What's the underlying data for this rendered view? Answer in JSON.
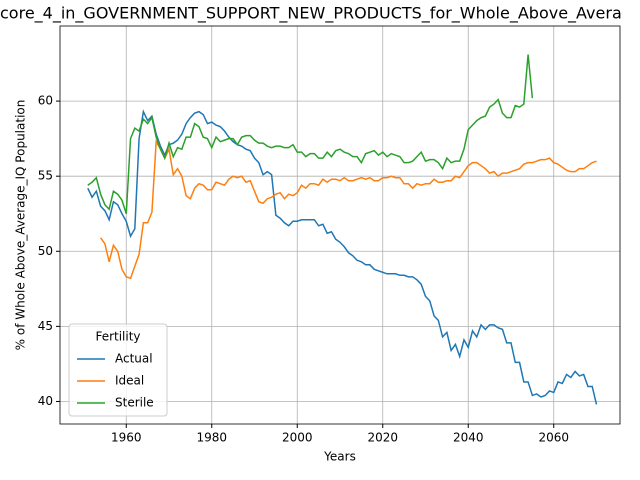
{
  "chart_data": {
    "type": "line",
    "title": "core_4_in_GOVERNMENT_SUPPORT_NEW_PRODUCTS_for_Whole_Above_Avera",
    "xlabel": "Years",
    "ylabel": "% of Whole Above_Average_IQ Population",
    "legend_title": "Fertility",
    "legend": "lower left",
    "grid": true,
    "xlim": [
      1944.5,
      2075.5
    ],
    "ylim": [
      38.5,
      65
    ],
    "xticks": [
      1960,
      1980,
      2000,
      2020,
      2040,
      2060
    ],
    "yticks": [
      40,
      45,
      50,
      55,
      60
    ],
    "x": [
      1951,
      1952,
      1953,
      1954,
      1955,
      1956,
      1957,
      1958,
      1959,
      1960,
      1961,
      1962,
      1963,
      1964,
      1965,
      1966,
      1967,
      1968,
      1969,
      1970,
      1971,
      1972,
      1973,
      1974,
      1975,
      1976,
      1977,
      1978,
      1979,
      1980,
      1981,
      1982,
      1983,
      1984,
      1985,
      1986,
      1987,
      1988,
      1989,
      1990,
      1991,
      1992,
      1993,
      1994,
      1995,
      1996,
      1997,
      1998,
      1999,
      2000,
      2001,
      2002,
      2003,
      2004,
      2005,
      2006,
      2007,
      2008,
      2009,
      2010,
      2011,
      2012,
      2013,
      2014,
      2015,
      2016,
      2017,
      2018,
      2019,
      2020,
      2021,
      2022,
      2023,
      2024,
      2025,
      2026,
      2027,
      2028,
      2029,
      2030,
      2031,
      2032,
      2033,
      2034,
      2035,
      2036,
      2037,
      2038,
      2039,
      2040,
      2041,
      2042,
      2043,
      2044,
      2045,
      2046,
      2047,
      2048,
      2049,
      2050,
      2051,
      2052,
      2053,
      2054,
      2055,
      2056,
      2057,
      2058,
      2059,
      2060,
      2061,
      2062,
      2063,
      2064,
      2065,
      2066,
      2067,
      2068,
      2069,
      2070
    ],
    "series": [
      {
        "name": "Actual",
        "color": "#1f77b4",
        "values": [
          54.2,
          53.6,
          54.0,
          53.0,
          52.7,
          52.1,
          53.3,
          53.1,
          52.5,
          52.0,
          51.0,
          51.5,
          57.5,
          59.3,
          58.7,
          59.0,
          57.8,
          57.0,
          56.4,
          57.1,
          57.2,
          57.4,
          57.8,
          58.5,
          58.9,
          59.2,
          59.3,
          59.1,
          58.5,
          58.6,
          58.4,
          58.3,
          58.0,
          57.6,
          57.3,
          57.1,
          57.0,
          56.8,
          56.7,
          56.2,
          55.9,
          55.1,
          55.3,
          55.1,
          52.4,
          52.2,
          51.9,
          51.7,
          52.0,
          52.0,
          52.1,
          52.1,
          52.1,
          52.1,
          51.7,
          51.8,
          51.2,
          51.3,
          50.8,
          50.6,
          50.3,
          49.9,
          49.7,
          49.4,
          49.3,
          49.1,
          49.1,
          48.8,
          48.7,
          48.6,
          48.5,
          48.5,
          48.5,
          48.4,
          48.4,
          48.3,
          48.3,
          48.1,
          47.8,
          47.0,
          46.7,
          45.7,
          45.4,
          44.3,
          44.6,
          43.4,
          43.8,
          43.0,
          44.1,
          43.6,
          44.7,
          44.3,
          45.1,
          44.8,
          45.1,
          45.1,
          44.9,
          44.8,
          43.9,
          43.9,
          42.6,
          42.6,
          41.3,
          41.3,
          40.4,
          40.5,
          40.3,
          40.4,
          40.7,
          40.6,
          41.3,
          41.2,
          41.8,
          41.6,
          42.0,
          41.7,
          41.8,
          41.0,
          41.0,
          39.8
        ]
      },
      {
        "name": "Ideal",
        "color": "#ff7f0e",
        "values": [
          null,
          null,
          null,
          50.9,
          50.5,
          49.3,
          50.4,
          50.0,
          48.8,
          48.3,
          48.2,
          49.0,
          49.8,
          51.9,
          51.9,
          52.6,
          57.3,
          56.8,
          56.2,
          56.8,
          55.1,
          55.5,
          55.0,
          53.7,
          53.5,
          54.2,
          54.5,
          54.4,
          54.1,
          54.1,
          54.6,
          54.5,
          54.4,
          54.8,
          55.0,
          54.9,
          55.0,
          54.6,
          54.7,
          54.0,
          53.3,
          53.2,
          53.5,
          53.6,
          53.8,
          53.9,
          53.5,
          53.8,
          53.7,
          53.9,
          54.4,
          54.2,
          54.5,
          54.5,
          54.4,
          54.8,
          54.6,
          54.8,
          54.8,
          54.7,
          54.9,
          54.7,
          54.7,
          54.8,
          54.9,
          54.8,
          54.9,
          54.7,
          54.7,
          54.9,
          54.9,
          55.0,
          54.9,
          54.9,
          54.5,
          54.5,
          54.2,
          54.5,
          54.4,
          54.5,
          54.5,
          54.8,
          54.6,
          54.6,
          54.7,
          54.7,
          55.0,
          54.9,
          55.3,
          55.7,
          55.9,
          55.9,
          55.7,
          55.5,
          55.2,
          55.3,
          55.0,
          55.2,
          55.2,
          55.3,
          55.4,
          55.5,
          55.8,
          55.9,
          55.9,
          56.0,
          56.1,
          56.1,
          56.2,
          55.9,
          55.8,
          55.6,
          55.4,
          55.3,
          55.3,
          55.5,
          55.5,
          55.7,
          55.9,
          56.0
        ]
      },
      {
        "name": "Sterile",
        "color": "#2ca02c",
        "values": [
          54.4,
          54.6,
          54.9,
          53.8,
          53.1,
          52.8,
          54.0,
          53.8,
          53.4,
          52.5,
          57.5,
          58.2,
          58.0,
          58.8,
          58.5,
          58.9,
          57.6,
          56.8,
          56.2,
          57.2,
          56.3,
          56.9,
          56.8,
          57.6,
          57.6,
          58.5,
          58.3,
          57.6,
          57.5,
          56.9,
          57.6,
          57.3,
          57.4,
          57.5,
          57.5,
          57.1,
          57.6,
          57.7,
          57.7,
          57.4,
          57.2,
          57.2,
          57.0,
          56.9,
          57.0,
          57.0,
          56.9,
          56.9,
          57.1,
          56.6,
          56.6,
          56.3,
          56.5,
          56.5,
          56.2,
          56.2,
          56.6,
          56.3,
          56.7,
          56.8,
          56.6,
          56.5,
          56.3,
          56.3,
          55.9,
          56.5,
          56.6,
          56.7,
          56.4,
          56.6,
          56.3,
          56.5,
          56.4,
          56.3,
          55.9,
          55.9,
          56.0,
          56.3,
          56.6,
          56.0,
          56.1,
          56.1,
          55.9,
          55.5,
          56.2,
          55.9,
          56.0,
          56.0,
          56.8,
          58.1,
          58.4,
          58.7,
          58.9,
          59.0,
          59.6,
          59.8,
          60.1,
          59.2,
          58.9,
          58.9,
          59.7,
          59.6,
          59.8,
          63.1,
          60.2,
          null,
          null,
          null,
          null,
          null,
          null,
          null,
          null,
          null,
          null,
          null,
          null,
          null,
          null,
          null
        ]
      }
    ]
  }
}
